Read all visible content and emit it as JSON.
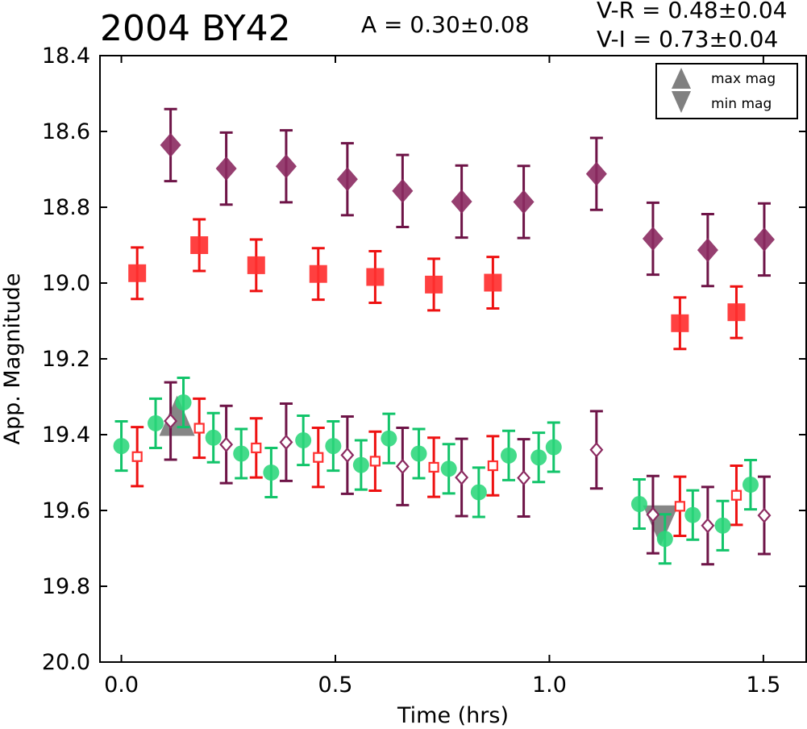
{
  "header": {
    "title": "2004 BY42",
    "amplitude": "A  = 0.30±0.08",
    "v_r": "V-R = 0.48±0.04",
    "v_i": "V-I  = 0.73±0.04"
  },
  "chart_data": {
    "type": "scatter",
    "title": "2004 BY42",
    "xlabel": "Time (hrs)",
    "ylabel": "App. Magnitude",
    "xlim": [
      -0.05,
      1.6
    ],
    "ylim": [
      20.0,
      18.4
    ],
    "y_inverted": true,
    "x_ticks": [
      0.0,
      0.5,
      1.0,
      1.5
    ],
    "x_tick_labels": [
      "0.0",
      "0.5",
      "1.0",
      "1.5"
    ],
    "y_ticks": [
      18.4,
      18.6,
      18.8,
      19.0,
      19.2,
      19.4,
      19.6,
      19.8,
      20.0
    ],
    "y_tick_labels": [
      "18.4",
      "18.6",
      "18.8",
      "19.0",
      "19.2",
      "19.4",
      "19.6",
      "19.8",
      "20.0"
    ],
    "grid": false,
    "legend_position": "top-right",
    "legend": [
      {
        "label": "max mag",
        "marker": "triangle-up",
        "color": "#808080"
      },
      {
        "label": "min mag",
        "marker": "triangle-down",
        "color": "#808080"
      }
    ],
    "series": [
      {
        "marker": "diamond-filled",
        "color": "#8b2a60",
        "err_color": "#6e1447",
        "points": [
          {
            "x": 0.115,
            "y": 18.636,
            "err": 0.095
          },
          {
            "x": 0.245,
            "y": 18.698,
            "err": 0.095
          },
          {
            "x": 0.385,
            "y": 18.692,
            "err": 0.095
          },
          {
            "x": 0.528,
            "y": 18.726,
            "err": 0.095
          },
          {
            "x": 0.657,
            "y": 18.757,
            "err": 0.095
          },
          {
            "x": 0.795,
            "y": 18.785,
            "err": 0.095
          },
          {
            "x": 0.94,
            "y": 18.786,
            "err": 0.095
          },
          {
            "x": 1.11,
            "y": 18.712,
            "err": 0.095
          },
          {
            "x": 1.242,
            "y": 18.883,
            "err": 0.095
          },
          {
            "x": 1.37,
            "y": 18.913,
            "err": 0.095
          },
          {
            "x": 1.502,
            "y": 18.885,
            "err": 0.095
          }
        ]
      },
      {
        "marker": "square-filled",
        "color": "#ff3030",
        "err_color": "#ee1111",
        "points": [
          {
            "x": 0.037,
            "y": 18.974,
            "err": 0.068
          },
          {
            "x": 0.182,
            "y": 18.9,
            "err": 0.068
          },
          {
            "x": 0.315,
            "y": 18.953,
            "err": 0.068
          },
          {
            "x": 0.46,
            "y": 18.976,
            "err": 0.068
          },
          {
            "x": 0.593,
            "y": 18.984,
            "err": 0.068
          },
          {
            "x": 0.73,
            "y": 19.004,
            "err": 0.068
          },
          {
            "x": 0.868,
            "y": 18.999,
            "err": 0.068
          },
          {
            "x": 1.305,
            "y": 19.106,
            "err": 0.068
          },
          {
            "x": 1.437,
            "y": 19.077,
            "err": 0.068
          }
        ]
      },
      {
        "marker": "circle-filled",
        "color": "#2ad67a",
        "err_color": "#12c46a",
        "points": [
          {
            "x": 0.0,
            "y": 19.43,
            "err": 0.065
          },
          {
            "x": 0.08,
            "y": 19.37,
            "err": 0.065
          },
          {
            "x": 0.145,
            "y": 19.315,
            "err": 0.065
          },
          {
            "x": 0.215,
            "y": 19.408,
            "err": 0.065
          },
          {
            "x": 0.28,
            "y": 19.45,
            "err": 0.065
          },
          {
            "x": 0.35,
            "y": 19.5,
            "err": 0.065
          },
          {
            "x": 0.425,
            "y": 19.415,
            "err": 0.065
          },
          {
            "x": 0.495,
            "y": 19.43,
            "err": 0.065
          },
          {
            "x": 0.56,
            "y": 19.48,
            "err": 0.065
          },
          {
            "x": 0.625,
            "y": 19.41,
            "err": 0.065
          },
          {
            "x": 0.695,
            "y": 19.45,
            "err": 0.065
          },
          {
            "x": 0.765,
            "y": 19.49,
            "err": 0.065
          },
          {
            "x": 0.835,
            "y": 19.552,
            "err": 0.065
          },
          {
            "x": 0.905,
            "y": 19.455,
            "err": 0.065
          },
          {
            "x": 0.975,
            "y": 19.46,
            "err": 0.065
          },
          {
            "x": 1.01,
            "y": 19.433,
            "err": 0.065
          },
          {
            "x": 1.21,
            "y": 19.583,
            "err": 0.065
          },
          {
            "x": 1.27,
            "y": 19.675,
            "err": 0.065
          },
          {
            "x": 1.335,
            "y": 19.612,
            "err": 0.065
          },
          {
            "x": 1.405,
            "y": 19.64,
            "err": 0.065
          },
          {
            "x": 1.47,
            "y": 19.532,
            "err": 0.065
          }
        ]
      },
      {
        "marker": "square-open",
        "color": "#ff3030",
        "err_color": "#ee1111",
        "points": [
          {
            "x": 0.037,
            "y": 19.458,
            "err": 0.078
          },
          {
            "x": 0.182,
            "y": 19.383,
            "err": 0.078
          },
          {
            "x": 0.315,
            "y": 19.435,
            "err": 0.078
          },
          {
            "x": 0.46,
            "y": 19.46,
            "err": 0.078
          },
          {
            "x": 0.593,
            "y": 19.47,
            "err": 0.078
          },
          {
            "x": 0.73,
            "y": 19.486,
            "err": 0.078
          },
          {
            "x": 0.868,
            "y": 19.482,
            "err": 0.078
          },
          {
            "x": 1.305,
            "y": 19.589,
            "err": 0.078
          },
          {
            "x": 1.437,
            "y": 19.56,
            "err": 0.078
          }
        ]
      },
      {
        "marker": "diamond-open",
        "color": "#8b2a60",
        "err_color": "#6e1447",
        "points": [
          {
            "x": 0.115,
            "y": 19.364,
            "err": 0.102
          },
          {
            "x": 0.245,
            "y": 19.426,
            "err": 0.102
          },
          {
            "x": 0.385,
            "y": 19.42,
            "err": 0.102
          },
          {
            "x": 0.528,
            "y": 19.454,
            "err": 0.102
          },
          {
            "x": 0.657,
            "y": 19.484,
            "err": 0.102
          },
          {
            "x": 0.795,
            "y": 19.513,
            "err": 0.102
          },
          {
            "x": 0.94,
            "y": 19.514,
            "err": 0.102
          },
          {
            "x": 1.11,
            "y": 19.44,
            "err": 0.102
          },
          {
            "x": 1.242,
            "y": 19.611,
            "err": 0.102
          },
          {
            "x": 1.37,
            "y": 19.64,
            "err": 0.102
          },
          {
            "x": 1.502,
            "y": 19.613,
            "err": 0.102
          }
        ]
      }
    ],
    "extrema_markers": [
      {
        "type": "max",
        "marker": "triangle-up",
        "color": "#808080",
        "x": 0.13,
        "y": 19.35
      },
      {
        "type": "min",
        "marker": "triangle-down",
        "color": "#808080",
        "x": 1.26,
        "y": 19.64
      }
    ]
  }
}
